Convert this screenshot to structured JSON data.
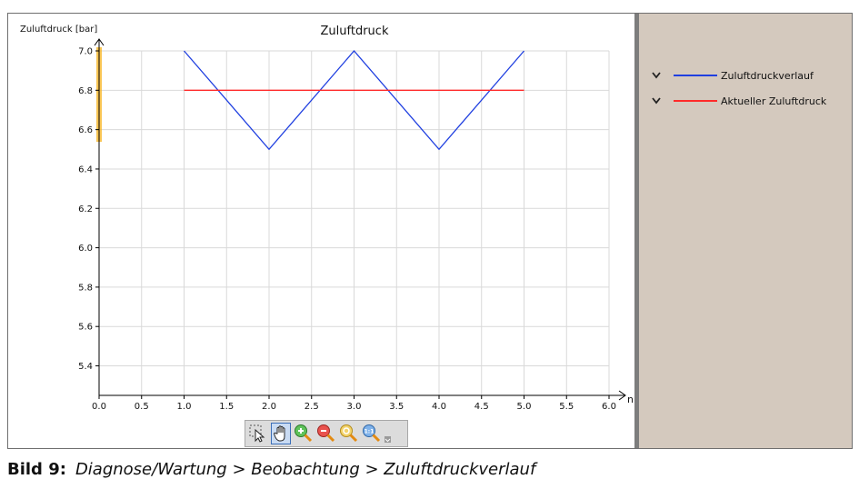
{
  "chart_data": {
    "type": "line",
    "title": "Zuluftdruck",
    "ylabel": "Zuluftdruck [bar]",
    "xlabel": "n",
    "xlim": [
      0,
      6
    ],
    "ylim": [
      5.25,
      7.0
    ],
    "grid": true,
    "legend_position": "right-panel",
    "x_ticks": [
      "0.0",
      "0.5",
      "1.0",
      "1.5",
      "2.0",
      "2.5",
      "3.0",
      "3.5",
      "4.0",
      "4.5",
      "5.0",
      "5.5",
      "6.0"
    ],
    "y_ticks": [
      "5.4",
      "5.6",
      "5.8",
      "6.0",
      "6.2",
      "6.4",
      "6.6",
      "6.8",
      "7.0"
    ],
    "series": [
      {
        "name": "Zuluftdruckverlauf",
        "color": "#1f3fe0",
        "x": [
          1,
          2,
          3,
          4,
          5
        ],
        "y": [
          7.0,
          6.5,
          7.0,
          6.5,
          7.0
        ]
      },
      {
        "name": "Aktueller Zuluftdruck",
        "color": "#ff2a2a",
        "x": [
          1,
          5
        ],
        "y": [
          6.8,
          6.8
        ]
      }
    ]
  },
  "legend": {
    "items": [
      {
        "label": "Zuluftdruckverlauf",
        "color": "#1f3fe0",
        "chevron": "chevron-down-icon"
      },
      {
        "label": "Aktueller Zuluftdruck",
        "color": "#ff2a2a",
        "chevron": "chevron-down-icon"
      }
    ]
  },
  "toolbar": {
    "tools": [
      "select-arrow-icon",
      "pan-hand-icon",
      "zoom-in-icon",
      "zoom-out-icon",
      "zoom-fit-icon",
      "zoom-reset-icon"
    ],
    "active_tool": "pan-hand-icon"
  },
  "caption": {
    "label": "Bild 9:",
    "text": "Diagnose/Wartung > Beobachtung > Zuluftdruckverlauf"
  },
  "colors": {
    "grid": "#d9d9d9",
    "axis": "#000000",
    "legend_panel": "#d4c9be",
    "y_highlight": "#f7b21b"
  }
}
